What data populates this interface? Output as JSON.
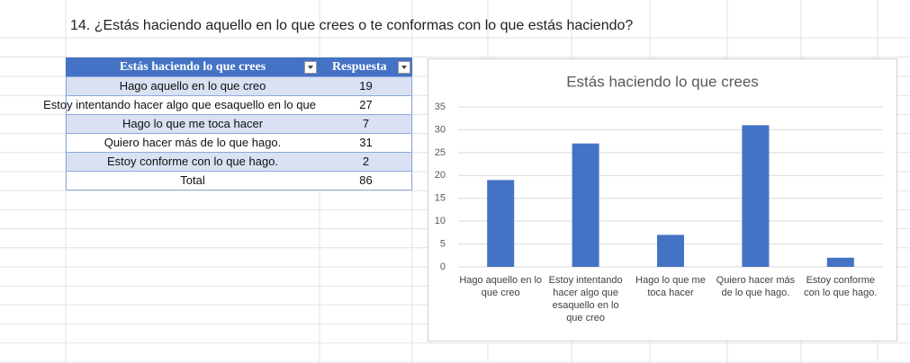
{
  "sheet": {
    "title": "14. ¿Estás haciendo aquello en lo que crees o te conformas con lo que estás haciendo?"
  },
  "table": {
    "header": [
      "Estás haciendo lo que crees",
      "Respuesta"
    ],
    "rows": [
      [
        "Hago aquello en lo que creo",
        19
      ],
      [
        "Estoy intentando hacer algo que esaquello en lo que creo",
        27
      ],
      [
        "Hago lo que me toca hacer",
        7
      ],
      [
        "Quiero hacer más de lo que hago.",
        31
      ],
      [
        "Estoy conforme con lo que hago.",
        2
      ]
    ],
    "total": [
      "Total",
      86
    ]
  },
  "chart_data": {
    "type": "bar",
    "title": "Estás haciendo lo que crees",
    "categories": [
      "Hago aquello en lo que creo",
      "Estoy intentando hacer algo que esaquello en lo que creo",
      "Hago lo que me toca hacer",
      "Quiero hacer más de lo que hago.",
      "Estoy conforme con lo que hago."
    ],
    "values": [
      19,
      27,
      7,
      31,
      2
    ],
    "color": "#4472c4",
    "ylim": [
      0,
      35
    ],
    "yticks": [
      0,
      5,
      10,
      15,
      20,
      25,
      30,
      35
    ],
    "grid": true
  }
}
